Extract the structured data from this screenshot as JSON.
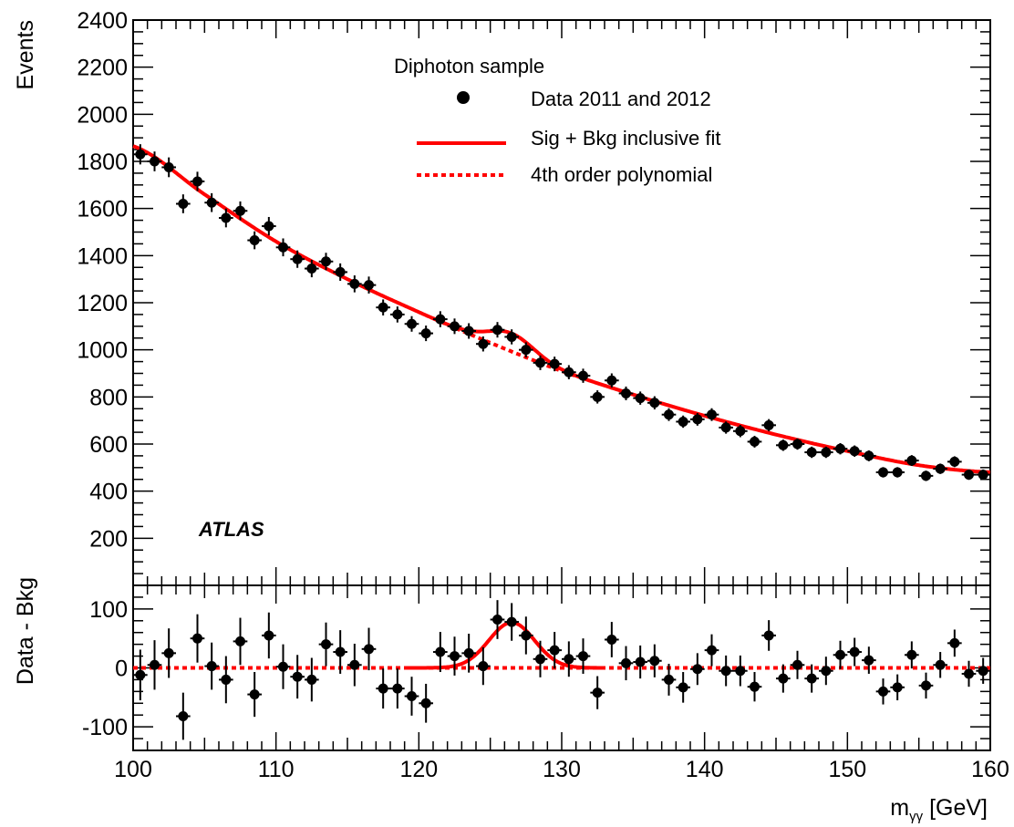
{
  "chart_data": [
    {
      "type": "scatter",
      "panel": "main",
      "ylabel": "Events",
      "ylim": [
        0,
        2400
      ],
      "xlim": [
        100,
        160
      ],
      "yticks": [
        "200",
        "400",
        "600",
        "800",
        "1000",
        "1200",
        "1400",
        "1600",
        "1800",
        "2000",
        "2200",
        "2400"
      ],
      "legend_title": "Diphoton sample",
      "legend_placement": "top-center",
      "experiment_label": "ATLAS",
      "series": [
        {
          "name": "Data 2011 and 2012",
          "style": "points",
          "color": "#000000",
          "x": [
            100.5,
            101.5,
            102.5,
            103.5,
            104.5,
            105.5,
            106.5,
            107.5,
            108.5,
            109.5,
            110.5,
            111.5,
            112.5,
            113.5,
            114.5,
            115.5,
            116.5,
            117.5,
            118.5,
            119.5,
            120.5,
            121.5,
            122.5,
            123.5,
            124.5,
            125.5,
            126.5,
            127.5,
            128.5,
            129.5,
            130.5,
            131.5,
            132.5,
            133.5,
            134.5,
            135.5,
            136.5,
            137.5,
            138.5,
            139.5,
            140.5,
            141.5,
            142.5,
            143.5,
            144.5,
            145.5,
            146.5,
            147.5,
            148.5,
            149.5,
            150.5,
            151.5,
            152.5,
            153.5,
            154.5,
            155.5,
            156.5,
            157.5,
            158.5,
            159.5
          ],
          "y": [
            1830,
            1800,
            1775,
            1620,
            1715,
            1625,
            1560,
            1590,
            1465,
            1525,
            1435,
            1385,
            1345,
            1375,
            1330,
            1280,
            1275,
            1180,
            1150,
            1110,
            1070,
            1130,
            1100,
            1080,
            1025,
            1085,
            1055,
            1000,
            945,
            940,
            905,
            890,
            800,
            870,
            815,
            795,
            775,
            725,
            695,
            705,
            725,
            670,
            655,
            610,
            680,
            595,
            600,
            565,
            565,
            580,
            570,
            550,
            480,
            480,
            530,
            465,
            495,
            525,
            470,
            470
          ],
          "yerr": [
            43,
            42,
            42,
            40,
            41,
            40,
            40,
            40,
            38,
            39,
            38,
            37,
            37,
            37,
            37,
            36,
            36,
            34,
            34,
            33,
            33,
            34,
            33,
            33,
            32,
            33,
            32,
            32,
            31,
            31,
            30,
            30,
            28,
            30,
            29,
            28,
            28,
            27,
            26,
            27,
            27,
            26,
            26,
            25,
            26,
            24,
            24,
            24,
            24,
            24,
            24,
            23,
            22,
            22,
            23,
            22,
            22,
            23,
            22,
            22
          ]
        },
        {
          "name": "Sig + Bkg inclusive fit",
          "style": "solid-line",
          "color": "#ff0000"
        },
        {
          "name": "4th order polynomial",
          "style": "dashed-line",
          "color": "#ff0000"
        }
      ],
      "background_fit": {
        "form": "4th order polynomial",
        "x": [
          100,
          105,
          110,
          115,
          120,
          125,
          130,
          135,
          140,
          145,
          150,
          155,
          160
        ],
        "y": [
          1865,
          1660,
          1460,
          1300,
          1160,
          1030,
          910,
          810,
          720,
          640,
          570,
          510,
          480
        ]
      },
      "signal": {
        "mass": 126.5,
        "amplitude": 77,
        "sigma": 1.6
      }
    },
    {
      "type": "scatter",
      "panel": "ratio",
      "ylabel": "Data - Bkg",
      "xlabel": "mγγ [GeV]",
      "xlabel_main": "m",
      "xlabel_sub": "γγ",
      "xlabel_unit": " [GeV]",
      "ylim": [
        -140,
        140
      ],
      "xlim": [
        100,
        160
      ],
      "yticks": [
        "-100",
        "0",
        "100"
      ],
      "xticks": [
        "100",
        "110",
        "120",
        "130",
        "140",
        "150",
        "160"
      ],
      "series": [
        {
          "name": "Data - Bkg",
          "style": "points",
          "color": "#000000",
          "x": [
            100.5,
            101.5,
            102.5,
            103.5,
            104.5,
            105.5,
            106.5,
            107.5,
            108.5,
            109.5,
            110.5,
            111.5,
            112.5,
            113.5,
            114.5,
            115.5,
            116.5,
            117.5,
            118.5,
            119.5,
            120.5,
            121.5,
            122.5,
            123.5,
            124.5,
            125.5,
            126.5,
            127.5,
            128.5,
            129.5,
            130.5,
            131.5,
            132.5,
            133.5,
            134.5,
            135.5,
            136.5,
            137.5,
            138.5,
            139.5,
            140.5,
            141.5,
            142.5,
            143.5,
            144.5,
            145.5,
            146.5,
            147.5,
            148.5,
            149.5,
            150.5,
            151.5,
            152.5,
            153.5,
            154.5,
            155.5,
            156.5,
            157.5,
            158.5,
            159.5
          ],
          "y": [
            -12,
            5,
            25,
            -82,
            50,
            3,
            -20,
            45,
            -45,
            55,
            2,
            -15,
            -20,
            40,
            27,
            5,
            32,
            -35,
            -35,
            -48,
            -60,
            27,
            20,
            25,
            3,
            82,
            78,
            55,
            15,
            30,
            15,
            20,
            -42,
            48,
            8,
            10,
            12,
            -20,
            -33,
            -2,
            30,
            -5,
            -5,
            -32,
            55,
            -18,
            5,
            -18,
            -5,
            22,
            27,
            13,
            -40,
            -33,
            22,
            -30,
            5,
            42,
            -10,
            -5
          ],
          "yerr": [
            43,
            42,
            42,
            40,
            41,
            40,
            40,
            40,
            38,
            39,
            38,
            37,
            37,
            37,
            37,
            36,
            36,
            34,
            34,
            33,
            33,
            34,
            33,
            33,
            32,
            33,
            32,
            32,
            31,
            31,
            30,
            30,
            28,
            30,
            29,
            28,
            28,
            27,
            26,
            27,
            27,
            26,
            26,
            25,
            26,
            24,
            24,
            24,
            24,
            24,
            24,
            23,
            22,
            22,
            23,
            22,
            22,
            23,
            22,
            22
          ]
        }
      ]
    }
  ]
}
